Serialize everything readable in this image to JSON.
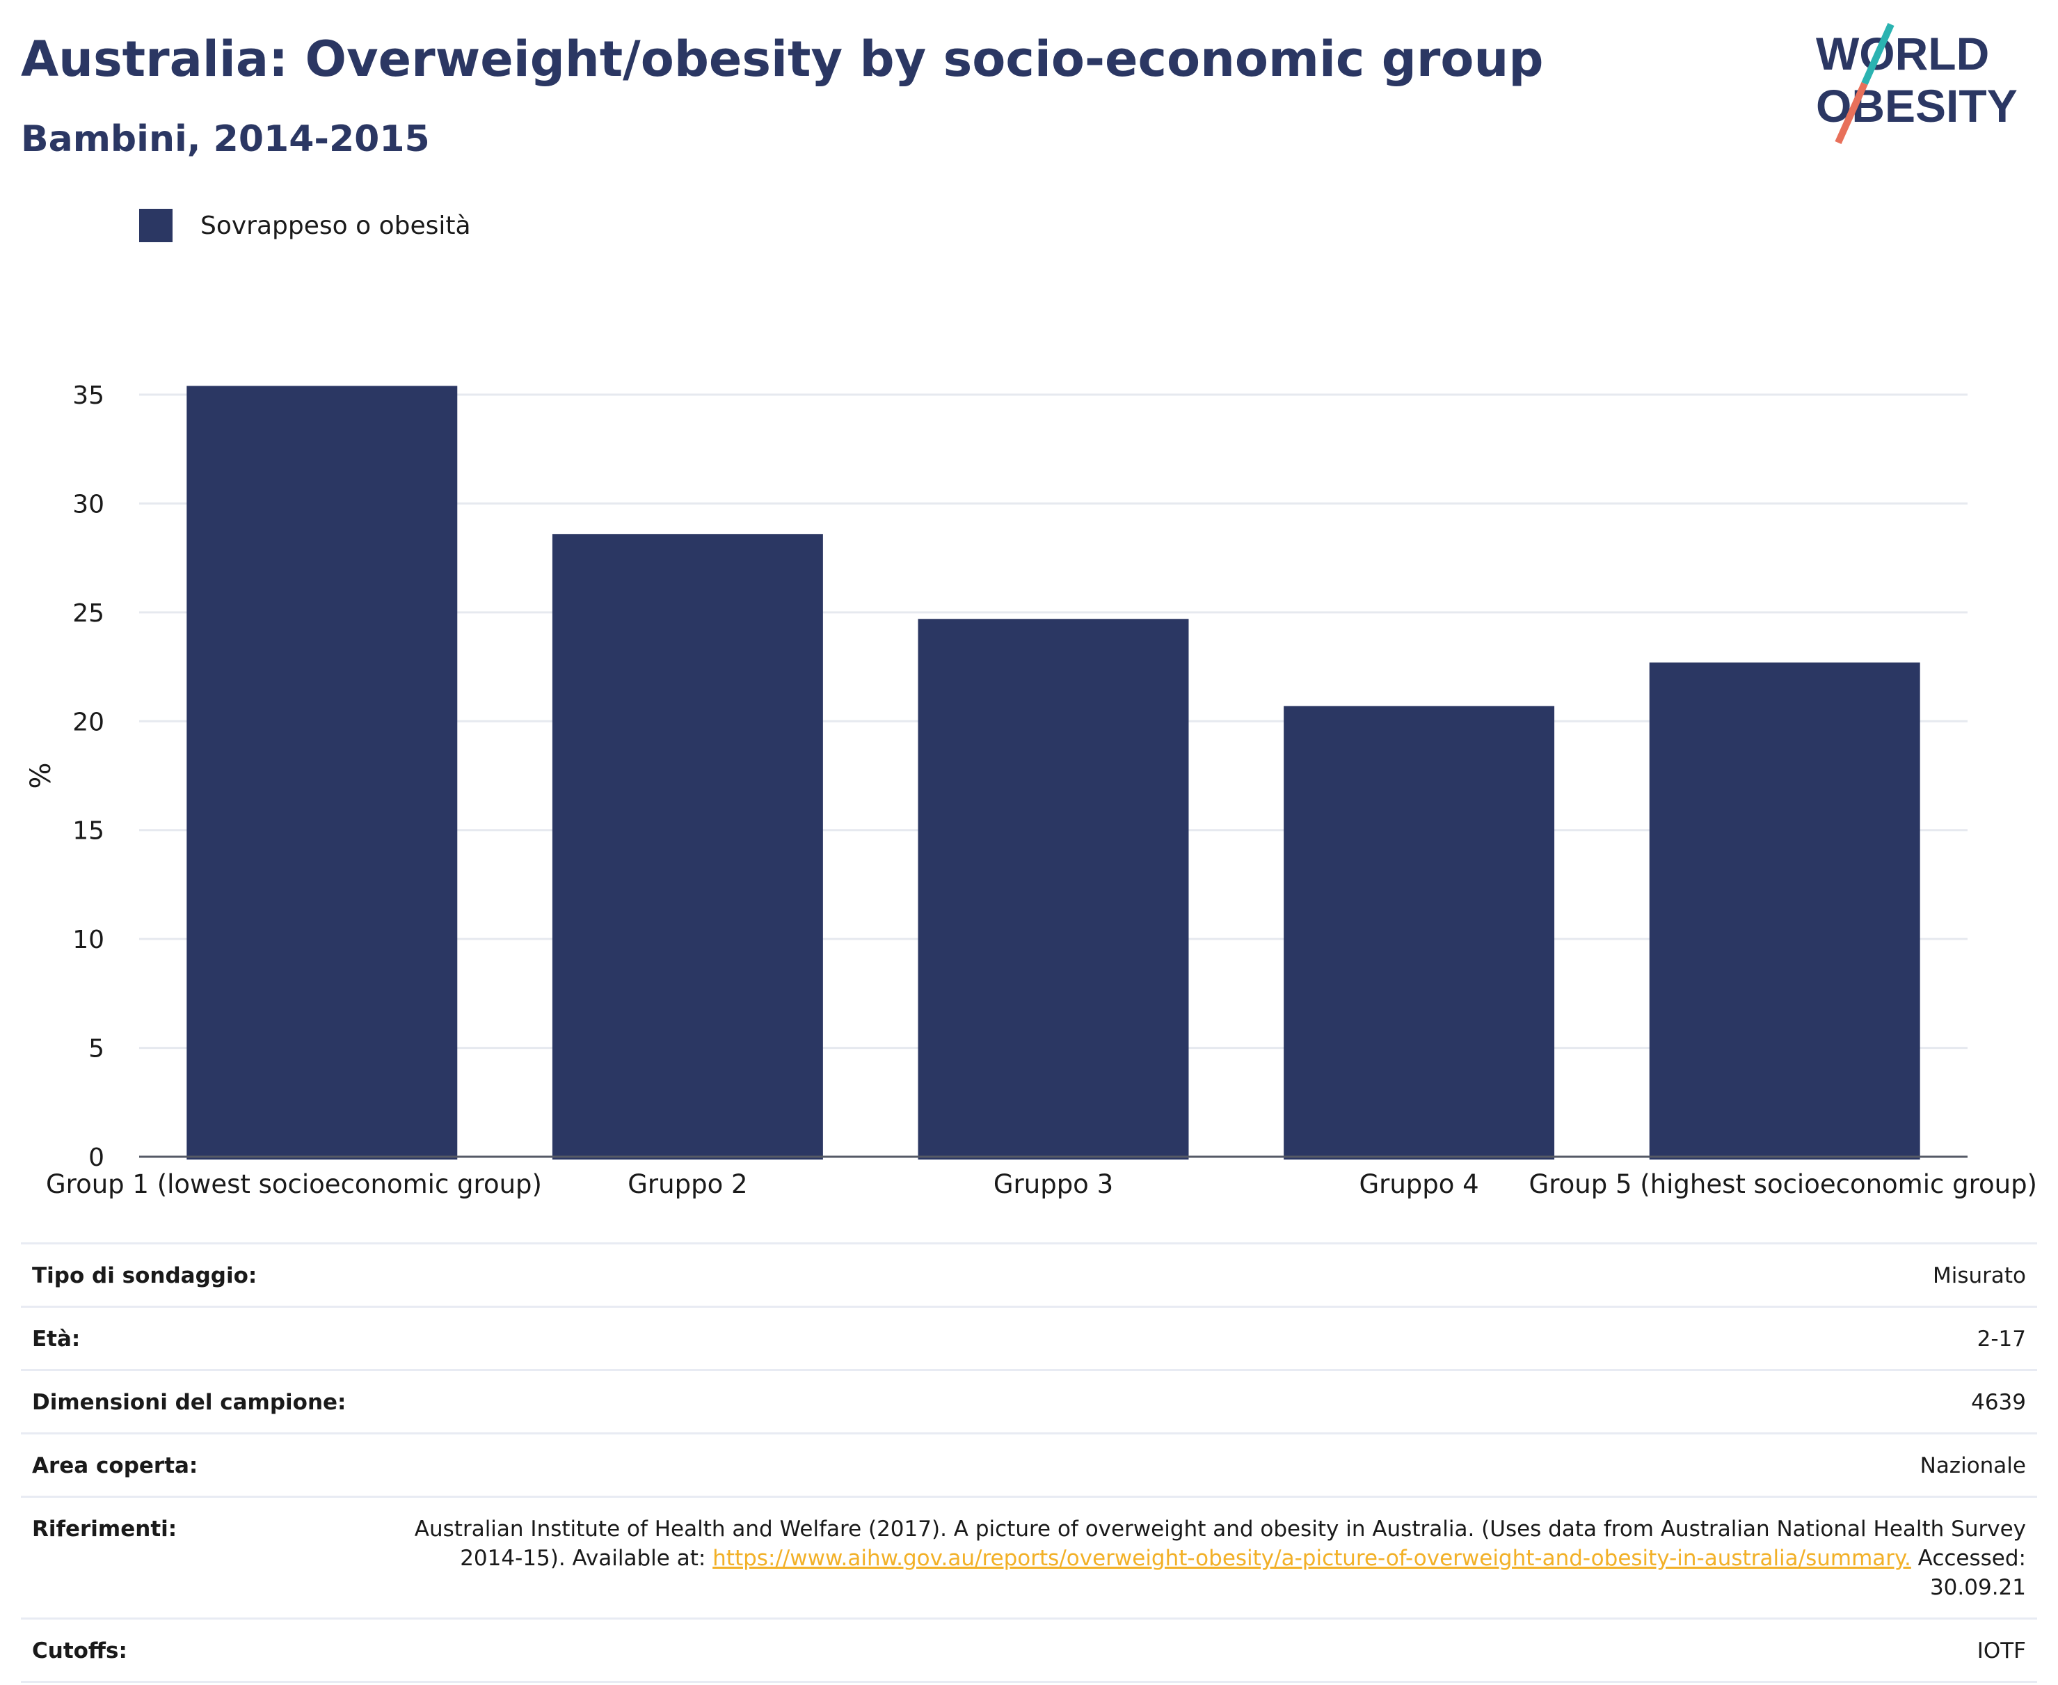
{
  "header": {
    "title": "Australia: Overweight/obesity by socio-economic group",
    "subtitle": "Bambini, 2014-2015",
    "logo_line1": "WORLD",
    "logo_line2": "OBESITY"
  },
  "legend": {
    "label": "Sovrappeso o obesità",
    "color": "#2b3763"
  },
  "chart_data": {
    "type": "bar",
    "title": "Australia: Overweight/obesity by socio-economic group",
    "subtitle": "Bambini, 2014-2015",
    "categories": [
      "Group 1 (lowest socioeconomic group)",
      "Gruppo 2",
      "Gruppo 3",
      "Gruppo 4",
      "Group 5 (highest socioeconomic group)"
    ],
    "series": [
      {
        "name": "Sovrappeso o obesità",
        "values": [
          35.4,
          28.6,
          24.7,
          20.7,
          22.7
        ],
        "color": "#2b3763"
      }
    ],
    "ylabel": "%",
    "xlabel": "",
    "ylim": [
      0,
      35
    ],
    "yticks": [
      0,
      5,
      10,
      15,
      20,
      25,
      30,
      35
    ],
    "grid": true,
    "legend_position": "top-left"
  },
  "meta": {
    "survey_type": {
      "label": "Tipo di sondaggio:",
      "value": "Misurato"
    },
    "age": {
      "label": "Età:",
      "value": "2-17"
    },
    "sample_size": {
      "label": "Dimensioni del campione:",
      "value": "4639"
    },
    "area": {
      "label": "Area coperta:",
      "value": "Nazionale"
    },
    "references": {
      "label": "Riferimenti:",
      "text_before": "Australian Institute of Health and Welfare (2017). A picture of overweight and obesity in Australia. (Uses data from Australian National Health Survey 2014-15). Available at: ",
      "link": "https://www.aihw.gov.au/reports/overweight-obesity/a-picture-of-overweight-and-obesity-in-australia/summary.",
      "text_after": " Accessed: 30.09.21"
    },
    "cutoffs": {
      "label": "Cutoffs:",
      "value": "IOTF"
    }
  }
}
